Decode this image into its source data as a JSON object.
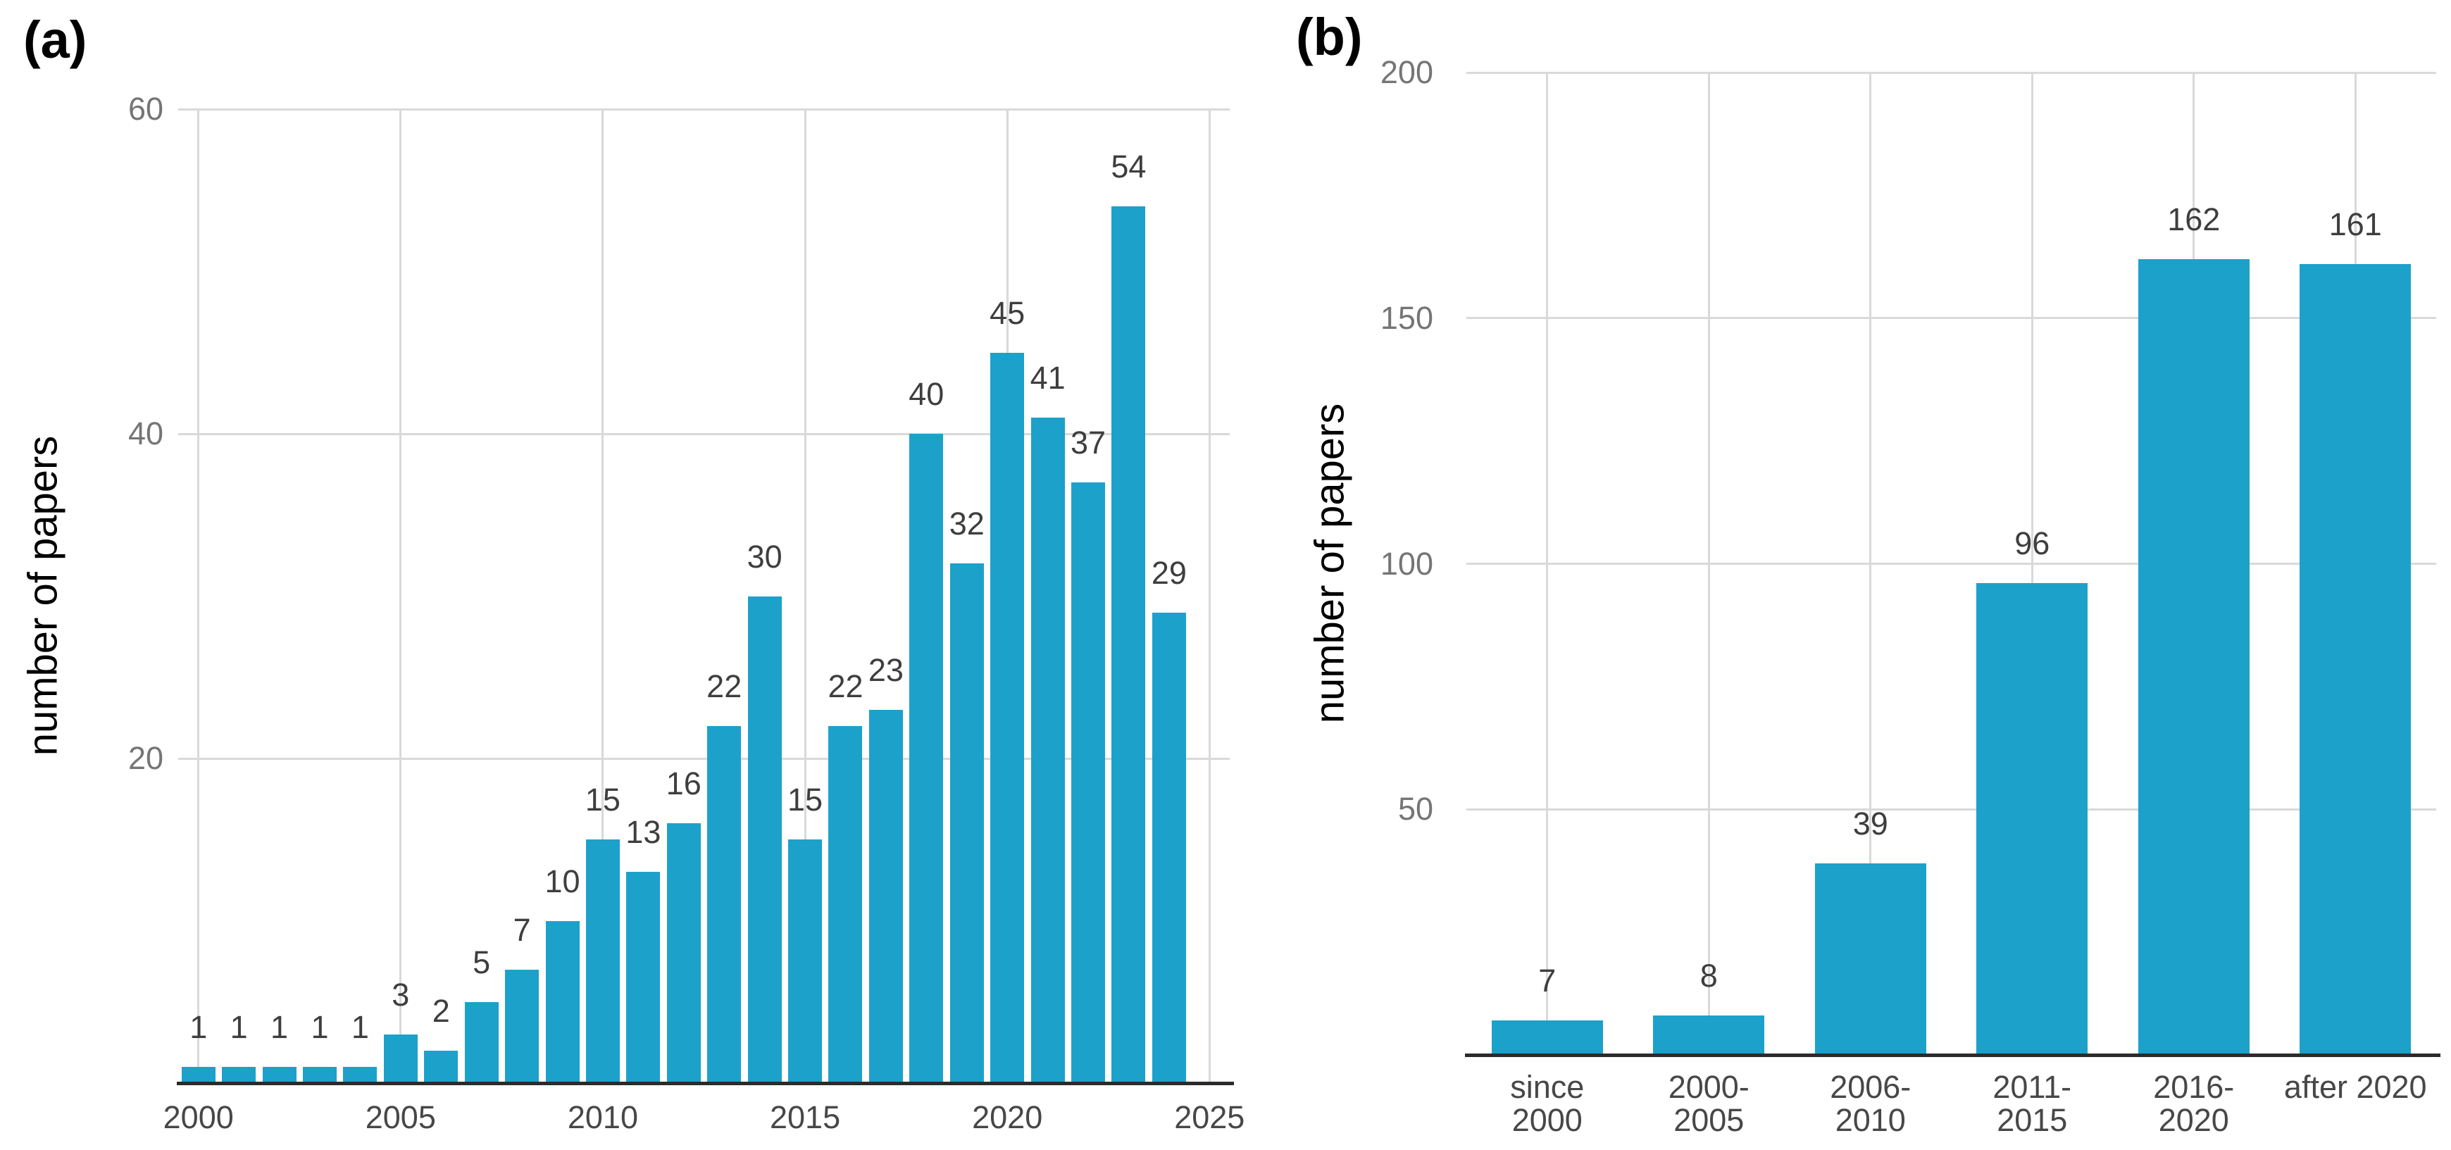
{
  "panels": [
    {
      "label": "(a)",
      "y_axis_title": "number of papers"
    },
    {
      "label": "(b)",
      "y_axis_title": "number of papers"
    }
  ],
  "colors": {
    "bar": "#1CA1CB",
    "gridline": "#D9D9D9",
    "baseline": "#2B2B2B",
    "y_tick_text": "#757575",
    "x_tick_text": "#474747",
    "value_text": "#3E3E3E",
    "title_text": "#000000"
  },
  "chart_data": [
    {
      "type": "bar",
      "panel": "(a)",
      "title": "",
      "xlabel": "",
      "ylabel": "number of papers",
      "categories": [
        2000,
        2001,
        2002,
        2003,
        2004,
        2005,
        2006,
        2007,
        2008,
        2009,
        2010,
        2011,
        2012,
        2013,
        2014,
        2015,
        2016,
        2017,
        2018,
        2019,
        2020,
        2021,
        2022,
        2023,
        2024
      ],
      "values": [
        1,
        1,
        1,
        1,
        1,
        3,
        2,
        5,
        7,
        10,
        15,
        13,
        16,
        22,
        30,
        15,
        22,
        23,
        40,
        32,
        45,
        41,
        37,
        54,
        29
      ],
      "value_labels_shown": true,
      "ylim": [
        0,
        60
      ],
      "yticks": [
        20,
        40,
        60
      ],
      "xticks": [
        "2000",
        "2005",
        "2010",
        "2015",
        "2020",
        "2025"
      ],
      "grid": true,
      "legend": "none"
    },
    {
      "type": "bar",
      "panel": "(b)",
      "title": "",
      "xlabel": "",
      "ylabel": "number of papers",
      "categories": [
        "since\n2000",
        "2000-\n2005",
        "2006-\n2010",
        "2011-\n2015",
        "2016-\n2020",
        "after 2020"
      ],
      "values": [
        7,
        8,
        39,
        96,
        162,
        161
      ],
      "value_labels_shown": true,
      "ylim": [
        0,
        200
      ],
      "yticks": [
        50,
        100,
        150,
        200
      ],
      "grid": true,
      "legend": "none"
    }
  ]
}
